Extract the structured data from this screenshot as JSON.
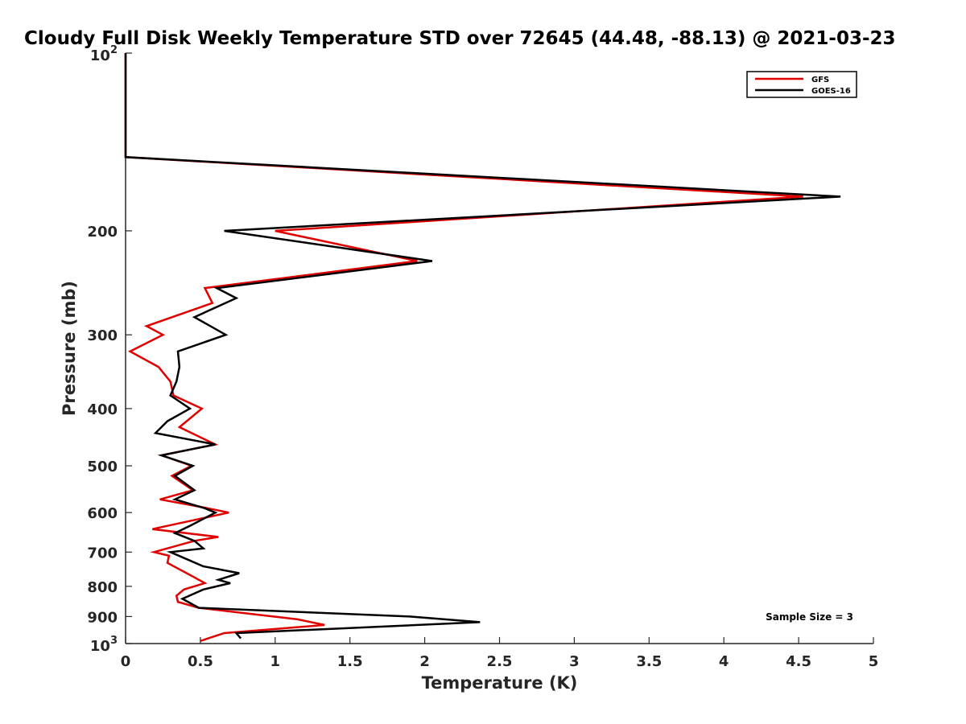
{
  "chart_data": {
    "type": "line",
    "title": "Cloudy Full Disk Weekly Temperature STD over 72645 (44.48, -88.13) @ 2021-03-23",
    "xlabel": "Temperature (K)",
    "ylabel": "Pressure (mb)",
    "xlim": [
      0,
      5
    ],
    "ylim": [
      1000,
      100
    ],
    "yscale": "log",
    "y_reversed": true,
    "x_ticks": [
      "0",
      "0.5",
      "1",
      "1.5",
      "2",
      "2.5",
      "3",
      "3.5",
      "4",
      "4.5",
      "5"
    ],
    "y_ticks": [
      {
        "value": 200,
        "label": "200"
      },
      {
        "value": 300,
        "label": "300"
      },
      {
        "value": 400,
        "label": "400"
      },
      {
        "value": 500,
        "label": "500"
      },
      {
        "value": 600,
        "label": "600"
      },
      {
        "value": 700,
        "label": "700"
      },
      {
        "value": 800,
        "label": "800"
      },
      {
        "value": 900,
        "label": "900"
      }
    ],
    "y_tick_top": {
      "base": "10",
      "exp": "2"
    },
    "y_tick_bottom": {
      "base": "10",
      "exp": "3"
    },
    "grid": false,
    "legend_position": "top-right",
    "series": [
      {
        "name": "GFS",
        "color": "#e00000",
        "points": [
          [
            0.0,
            100
          ],
          [
            0.0,
            150
          ],
          [
            4.53,
            175
          ],
          [
            1.0,
            200
          ],
          [
            1.95,
            225
          ],
          [
            0.53,
            250
          ],
          [
            0.58,
            265
          ],
          [
            0.14,
            290
          ],
          [
            0.25,
            300
          ],
          [
            0.03,
            320
          ],
          [
            0.22,
            340
          ],
          [
            0.3,
            360
          ],
          [
            0.32,
            380
          ],
          [
            0.51,
            400
          ],
          [
            0.36,
            430
          ],
          [
            0.6,
            460
          ],
          [
            0.24,
            480
          ],
          [
            0.44,
            500
          ],
          [
            0.31,
            520
          ],
          [
            0.45,
            550
          ],
          [
            0.23,
            570
          ],
          [
            0.55,
            590
          ],
          [
            0.69,
            600
          ],
          [
            0.18,
            640
          ],
          [
            0.62,
            660
          ],
          [
            0.46,
            670
          ],
          [
            0.19,
            700
          ],
          [
            0.29,
            710
          ],
          [
            0.28,
            730
          ],
          [
            0.45,
            770
          ],
          [
            0.53,
            790
          ],
          [
            0.39,
            810
          ],
          [
            0.34,
            830
          ],
          [
            0.35,
            850
          ],
          [
            0.49,
            870
          ],
          [
            1.15,
            910
          ],
          [
            1.33,
            930
          ],
          [
            0.66,
            960
          ],
          [
            0.5,
            990
          ]
        ]
      },
      {
        "name": "GOES-16",
        "color": "#000000",
        "points": [
          [
            0.0,
            100
          ],
          [
            0.0,
            150
          ],
          [
            4.78,
            175
          ],
          [
            0.66,
            200
          ],
          [
            2.05,
            225
          ],
          [
            0.61,
            250
          ],
          [
            0.74,
            260
          ],
          [
            0.46,
            280
          ],
          [
            0.67,
            300
          ],
          [
            0.35,
            320
          ],
          [
            0.36,
            340
          ],
          [
            0.34,
            360
          ],
          [
            0.3,
            380
          ],
          [
            0.43,
            400
          ],
          [
            0.28,
            420
          ],
          [
            0.2,
            440
          ],
          [
            0.6,
            460
          ],
          [
            0.24,
            480
          ],
          [
            0.45,
            500
          ],
          [
            0.33,
            520
          ],
          [
            0.46,
            550
          ],
          [
            0.33,
            570
          ],
          [
            0.53,
            590
          ],
          [
            0.6,
            600
          ],
          [
            0.44,
            630
          ],
          [
            0.33,
            650
          ],
          [
            0.46,
            670
          ],
          [
            0.52,
            690
          ],
          [
            0.3,
            700
          ],
          [
            0.52,
            740
          ],
          [
            0.76,
            760
          ],
          [
            0.62,
            780
          ],
          [
            0.7,
            790
          ],
          [
            0.52,
            810
          ],
          [
            0.38,
            840
          ],
          [
            0.49,
            870
          ],
          [
            1.9,
            900
          ],
          [
            2.37,
            920
          ],
          [
            0.74,
            960
          ],
          [
            0.77,
            980
          ]
        ]
      }
    ],
    "annotations": [
      {
        "text": "Sample Size = 3"
      }
    ]
  }
}
